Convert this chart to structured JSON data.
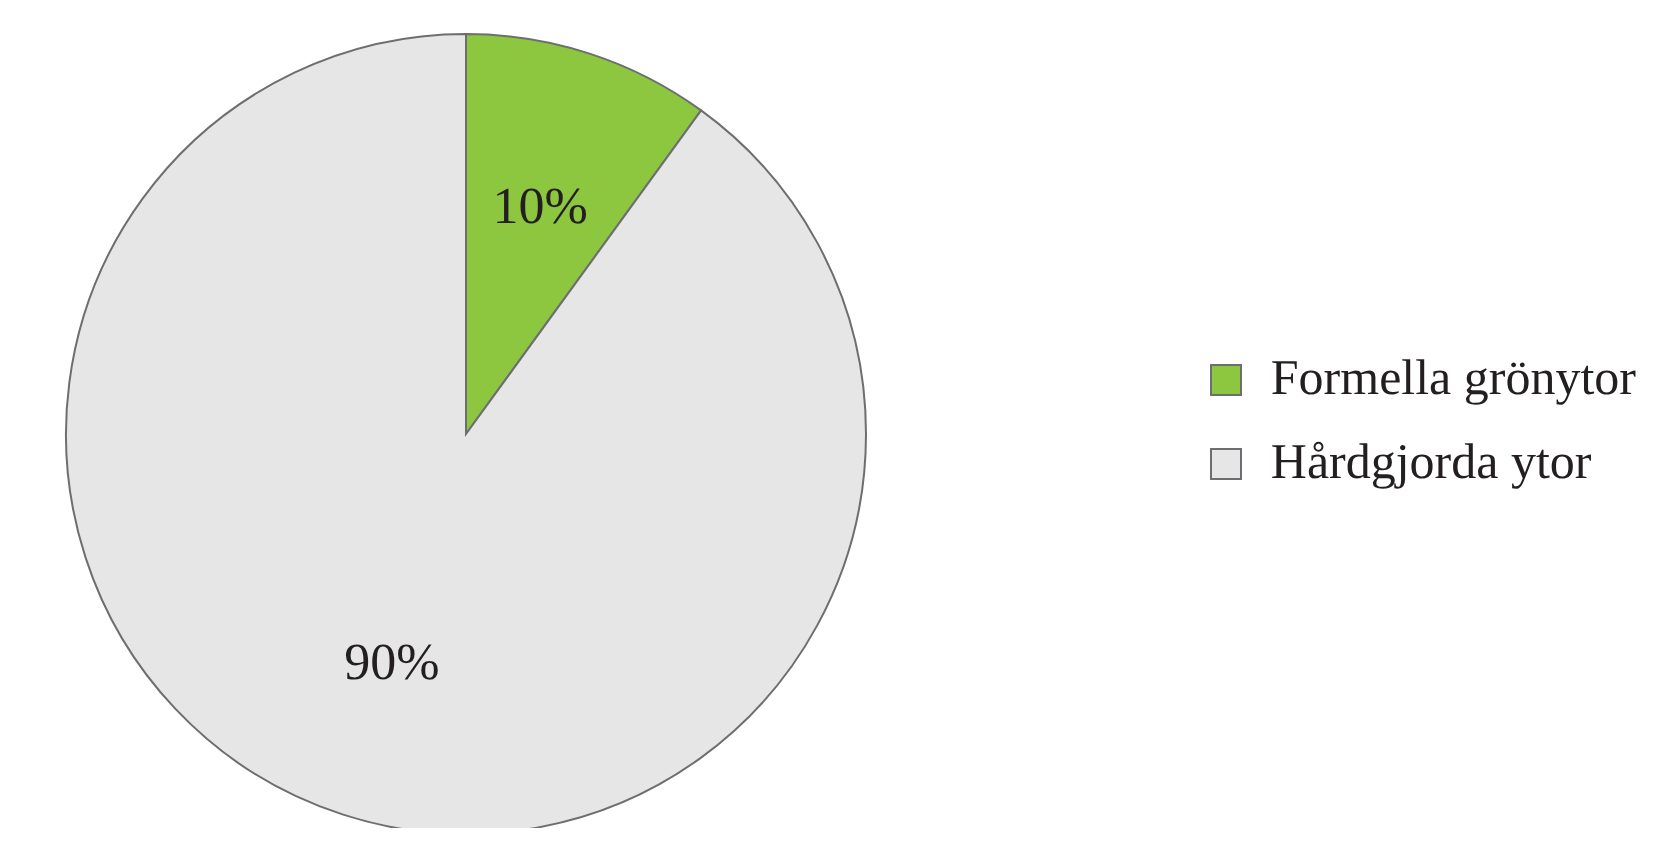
{
  "chart_data": {
    "type": "pie",
    "categories": [
      "Formella grönytor",
      "Hårdgjorda ytor"
    ],
    "values": [
      10,
      90
    ],
    "colors": [
      "#8dc63f",
      "#e6e6e6"
    ],
    "value_labels": [
      "10%",
      "90%"
    ],
    "legend": "right"
  }
}
